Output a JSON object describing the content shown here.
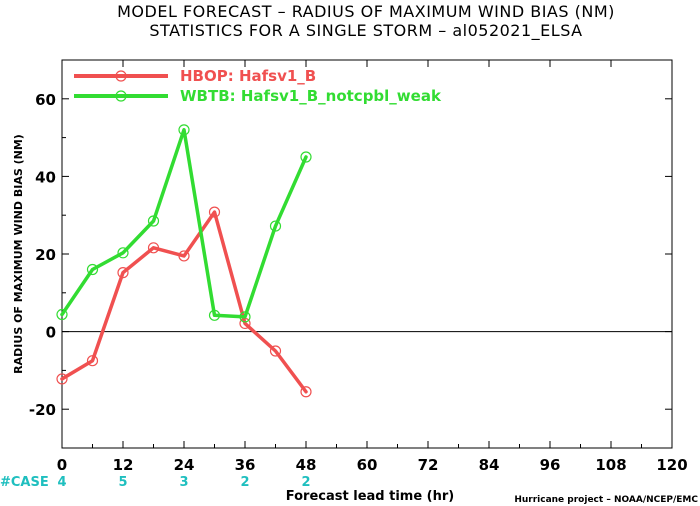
{
  "chart_data": {
    "type": "line",
    "title": "MODEL FORECAST – RADIUS OF MAXIMUM WIND BIAS (NM)",
    "subtitle": "STATISTICS FOR A SINGLE STORM – al052021_ELSA",
    "xlabel": "Forecast lead time (hr)",
    "ylabel": "RADIUS OF MAXIMUM WIND BIAS (NM)",
    "xlim": [
      0,
      120
    ],
    "ylim": [
      -30,
      70
    ],
    "xticks": [
      "0",
      "12",
      "24",
      "36",
      "48",
      "60",
      "72",
      "84",
      "96",
      "108",
      "120"
    ],
    "yticks": [
      "-20",
      "0",
      "20",
      "40",
      "60"
    ],
    "grid": false,
    "legend_position": "top-left",
    "series": [
      {
        "name": "HBOP: Hafsv1_B",
        "color": "#f05050",
        "x": [
          0,
          6,
          12,
          18,
          24,
          30,
          36,
          42,
          48
        ],
        "y": [
          -12.2,
          -7.5,
          15.2,
          21.6,
          19.5,
          30.8,
          2.1,
          -5.0,
          -15.5
        ]
      },
      {
        "name": "WBTB: Hafsv1_B_notcpbl_weak",
        "color": "#32dc32",
        "x": [
          0,
          6,
          12,
          18,
          24,
          30,
          36,
          42,
          48
        ],
        "y": [
          4.4,
          16.0,
          20.3,
          28.5,
          52.0,
          4.2,
          3.8,
          27.2,
          45.0
        ]
      }
    ],
    "case_label": "#CASE",
    "cases": [
      {
        "x": 0,
        "label": "4"
      },
      {
        "x": 12,
        "label": "5"
      },
      {
        "x": 24,
        "label": "3"
      },
      {
        "x": 36,
        "label": "2"
      },
      {
        "x": 48,
        "label": "2"
      }
    ],
    "credit": "Hurricane project – NOAA/NCEP/EMC"
  }
}
